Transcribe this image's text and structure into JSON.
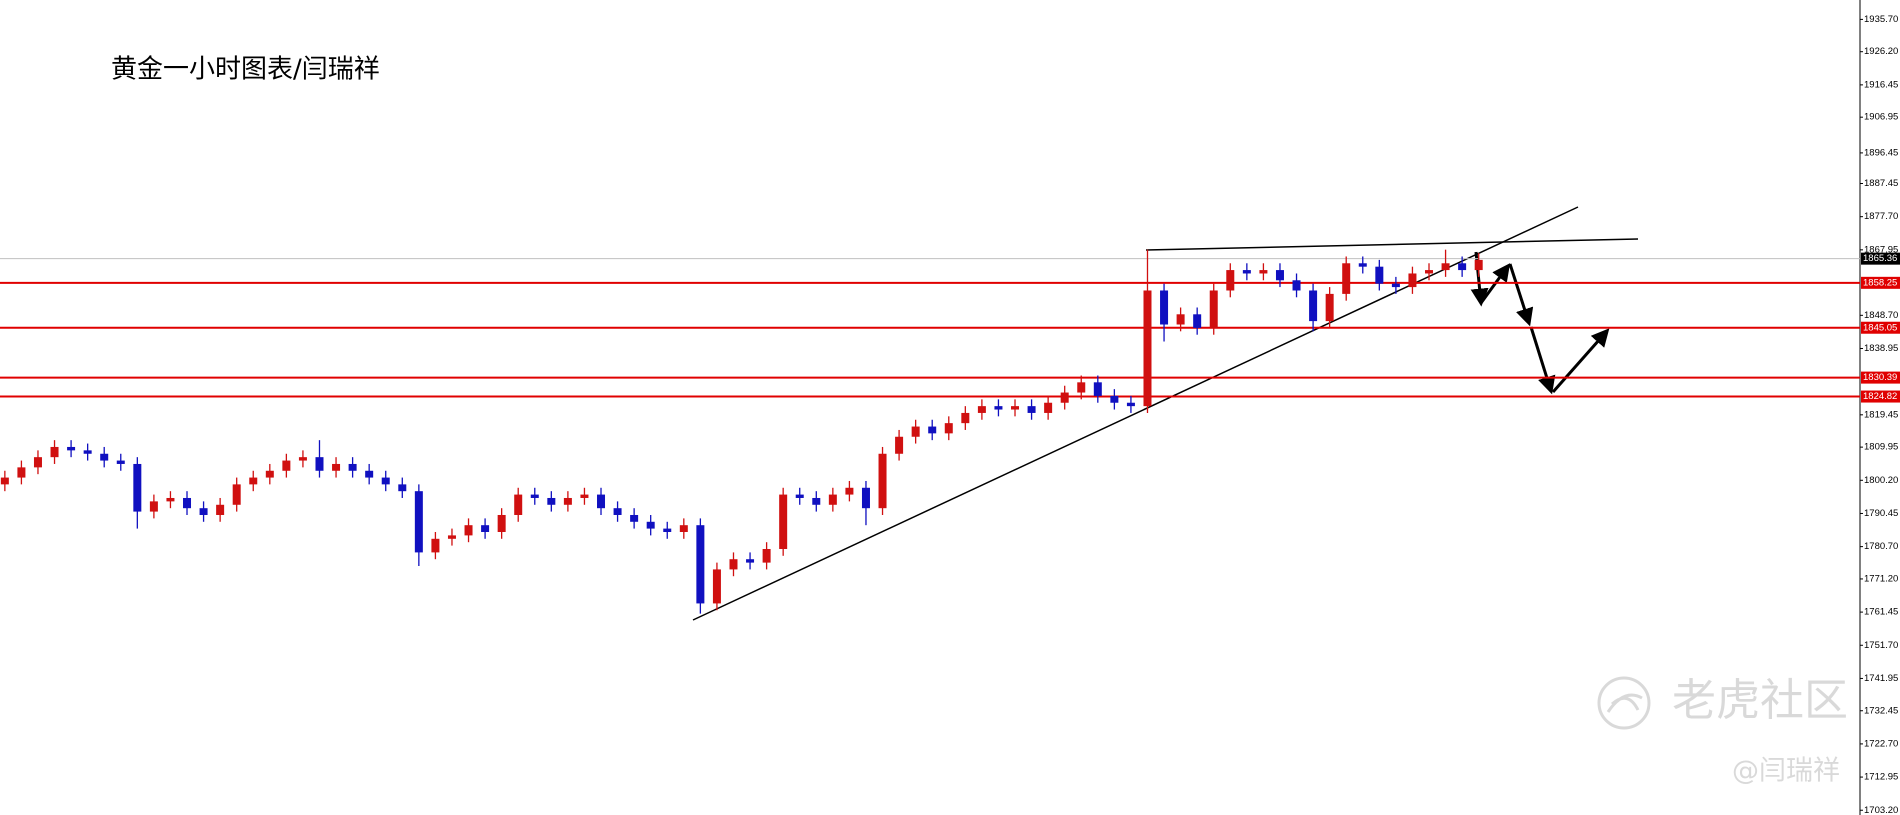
{
  "chart_data": {
    "type": "candlestick",
    "title": "黄金一小时图表/闫瑞祥",
    "watermark": {
      "brand": "老虎社区",
      "author": "@闫瑞祥"
    },
    "up_color": "#d01010",
    "down_color": "#1010c0",
    "ylim": [
      1701.8,
      1941.4
    ],
    "yticks": [
      {
        "value": 1935.7,
        "label": "1935.70"
      },
      {
        "value": 1926.2,
        "label": "1926.20"
      },
      1916.45,
      1906.95,
      1896.45,
      1887.45,
      {
        "value": 1877.7,
        "label": "1877.70"
      },
      1867.95,
      {
        "value": 1848.7,
        "label": "1848.70"
      },
      1838.95,
      1819.45,
      1809.95,
      {
        "value": 1800.2,
        "label": "1800.20"
      },
      1790.45,
      {
        "value": 1780.7,
        "label": "1780.70"
      },
      {
        "value": 1771.2,
        "label": "1771.20"
      },
      1761.45,
      {
        "value": 1751.7,
        "label": "1751.70"
      },
      1741.95,
      1732.45,
      {
        "value": 1722.7,
        "label": "1722.70"
      },
      1712.95,
      {
        "value": 1703.2,
        "label": "1703.20"
      }
    ],
    "levels": [
      {
        "value": 1858.25,
        "color": "#e00000"
      },
      {
        "value": 1845.05,
        "color": "#e00000"
      },
      {
        "value": 1830.39,
        "color": "#e00000"
      },
      {
        "value": 1824.82,
        "color": "#e00000"
      }
    ],
    "current_price": {
      "value": 1865.36,
      "color": "#c0c0c0"
    },
    "open": [
      1799,
      1801,
      1804,
      1807,
      1810,
      1809,
      1808,
      1806,
      1805,
      1791,
      1794,
      1795,
      1792,
      1790,
      1793,
      1799,
      1801,
      1803,
      1806,
      1807,
      1803,
      1805,
      1803,
      1801,
      1799,
      1797,
      1779,
      1783,
      1784,
      1787,
      1785,
      1790,
      1796,
      1795,
      1793,
      1795,
      1796,
      1792,
      1790,
      1788,
      1786,
      1785,
      1787,
      1764,
      1774,
      1777,
      1776,
      1780,
      1796,
      1795,
      1793,
      1796,
      1798,
      1792,
      1808,
      1813,
      1816,
      1814,
      1817,
      1820,
      1822,
      1821,
      1822,
      1820,
      1823,
      1826,
      1829,
      1825,
      1823,
      1822,
      1856,
      1846,
      1849,
      1845,
      1856,
      1862,
      1861,
      1862,
      1859,
      1856,
      1847,
      1855,
      1864,
      1863,
      1858,
      1857,
      1861,
      1862,
      1864,
      1862
    ],
    "high": [
      1803,
      1806,
      1809,
      1812,
      1812,
      1811,
      1810,
      1808,
      1807,
      1796,
      1797,
      1797,
      1794,
      1795,
      1801,
      1803,
      1805,
      1808,
      1809,
      1812,
      1807,
      1807,
      1805,
      1803,
      1801,
      1799,
      1785,
      1786,
      1789,
      1789,
      1792,
      1798,
      1798,
      1797,
      1797,
      1798,
      1798,
      1794,
      1792,
      1790,
      1788,
      1789,
      1789,
      1776,
      1779,
      1779,
      1782,
      1798,
      1798,
      1797,
      1798,
      1800,
      1800,
      1810,
      1815,
      1818,
      1818,
      1819,
      1822,
      1824,
      1824,
      1824,
      1824,
      1825,
      1828,
      1831,
      1831,
      1827,
      1825,
      1868,
      1858,
      1851,
      1851,
      1858,
      1864,
      1864,
      1864,
      1864,
      1861,
      1858,
      1857,
      1866,
      1866,
      1865,
      1860,
      1863,
      1864,
      1868,
      1866,
      1867
    ],
    "low": [
      1797,
      1799,
      1802,
      1805,
      1807,
      1806,
      1804,
      1803,
      1786,
      1789,
      1792,
      1790,
      1788,
      1788,
      1791,
      1797,
      1799,
      1801,
      1804,
      1801,
      1801,
      1801,
      1799,
      1797,
      1795,
      1775,
      1777,
      1781,
      1782,
      1783,
      1783,
      1788,
      1793,
      1791,
      1791,
      1793,
      1790,
      1788,
      1786,
      1784,
      1783,
      1783,
      1761,
      1762,
      1772,
      1774,
      1774,
      1778,
      1793,
      1791,
      1791,
      1794,
      1787,
      1790,
      1806,
      1811,
      1812,
      1812,
      1815,
      1818,
      1819,
      1819,
      1818,
      1818,
      1821,
      1824,
      1823,
      1821,
      1820,
      1820,
      1841,
      1844,
      1843,
      1843,
      1854,
      1859,
      1859,
      1857,
      1854,
      1844,
      1845,
      1853,
      1861,
      1856,
      1855,
      1855,
      1859,
      1860,
      1860,
      1860
    ],
    "close": [
      1801,
      1804,
      1807,
      1810,
      1809,
      1808,
      1806,
      1805,
      1791,
      1794,
      1795,
      1792,
      1790,
      1793,
      1799,
      1801,
      1803,
      1806,
      1807,
      1803,
      1805,
      1803,
      1801,
      1799,
      1797,
      1779,
      1783,
      1784,
      1787,
      1785,
      1790,
      1796,
      1795,
      1793,
      1795,
      1796,
      1792,
      1790,
      1788,
      1786,
      1785,
      1787,
      1764,
      1774,
      1777,
      1776,
      1780,
      1796,
      1795,
      1793,
      1796,
      1798,
      1792,
      1808,
      1813,
      1816,
      1814,
      1817,
      1820,
      1822,
      1821,
      1822,
      1820,
      1823,
      1826,
      1829,
      1825,
      1823,
      1822,
      1856,
      1846,
      1849,
      1845,
      1856,
      1862,
      1861,
      1862,
      1859,
      1856,
      1847,
      1855,
      1864,
      1863,
      1858,
      1857,
      1861,
      1862,
      1864,
      1862,
      1865
    ]
  }
}
